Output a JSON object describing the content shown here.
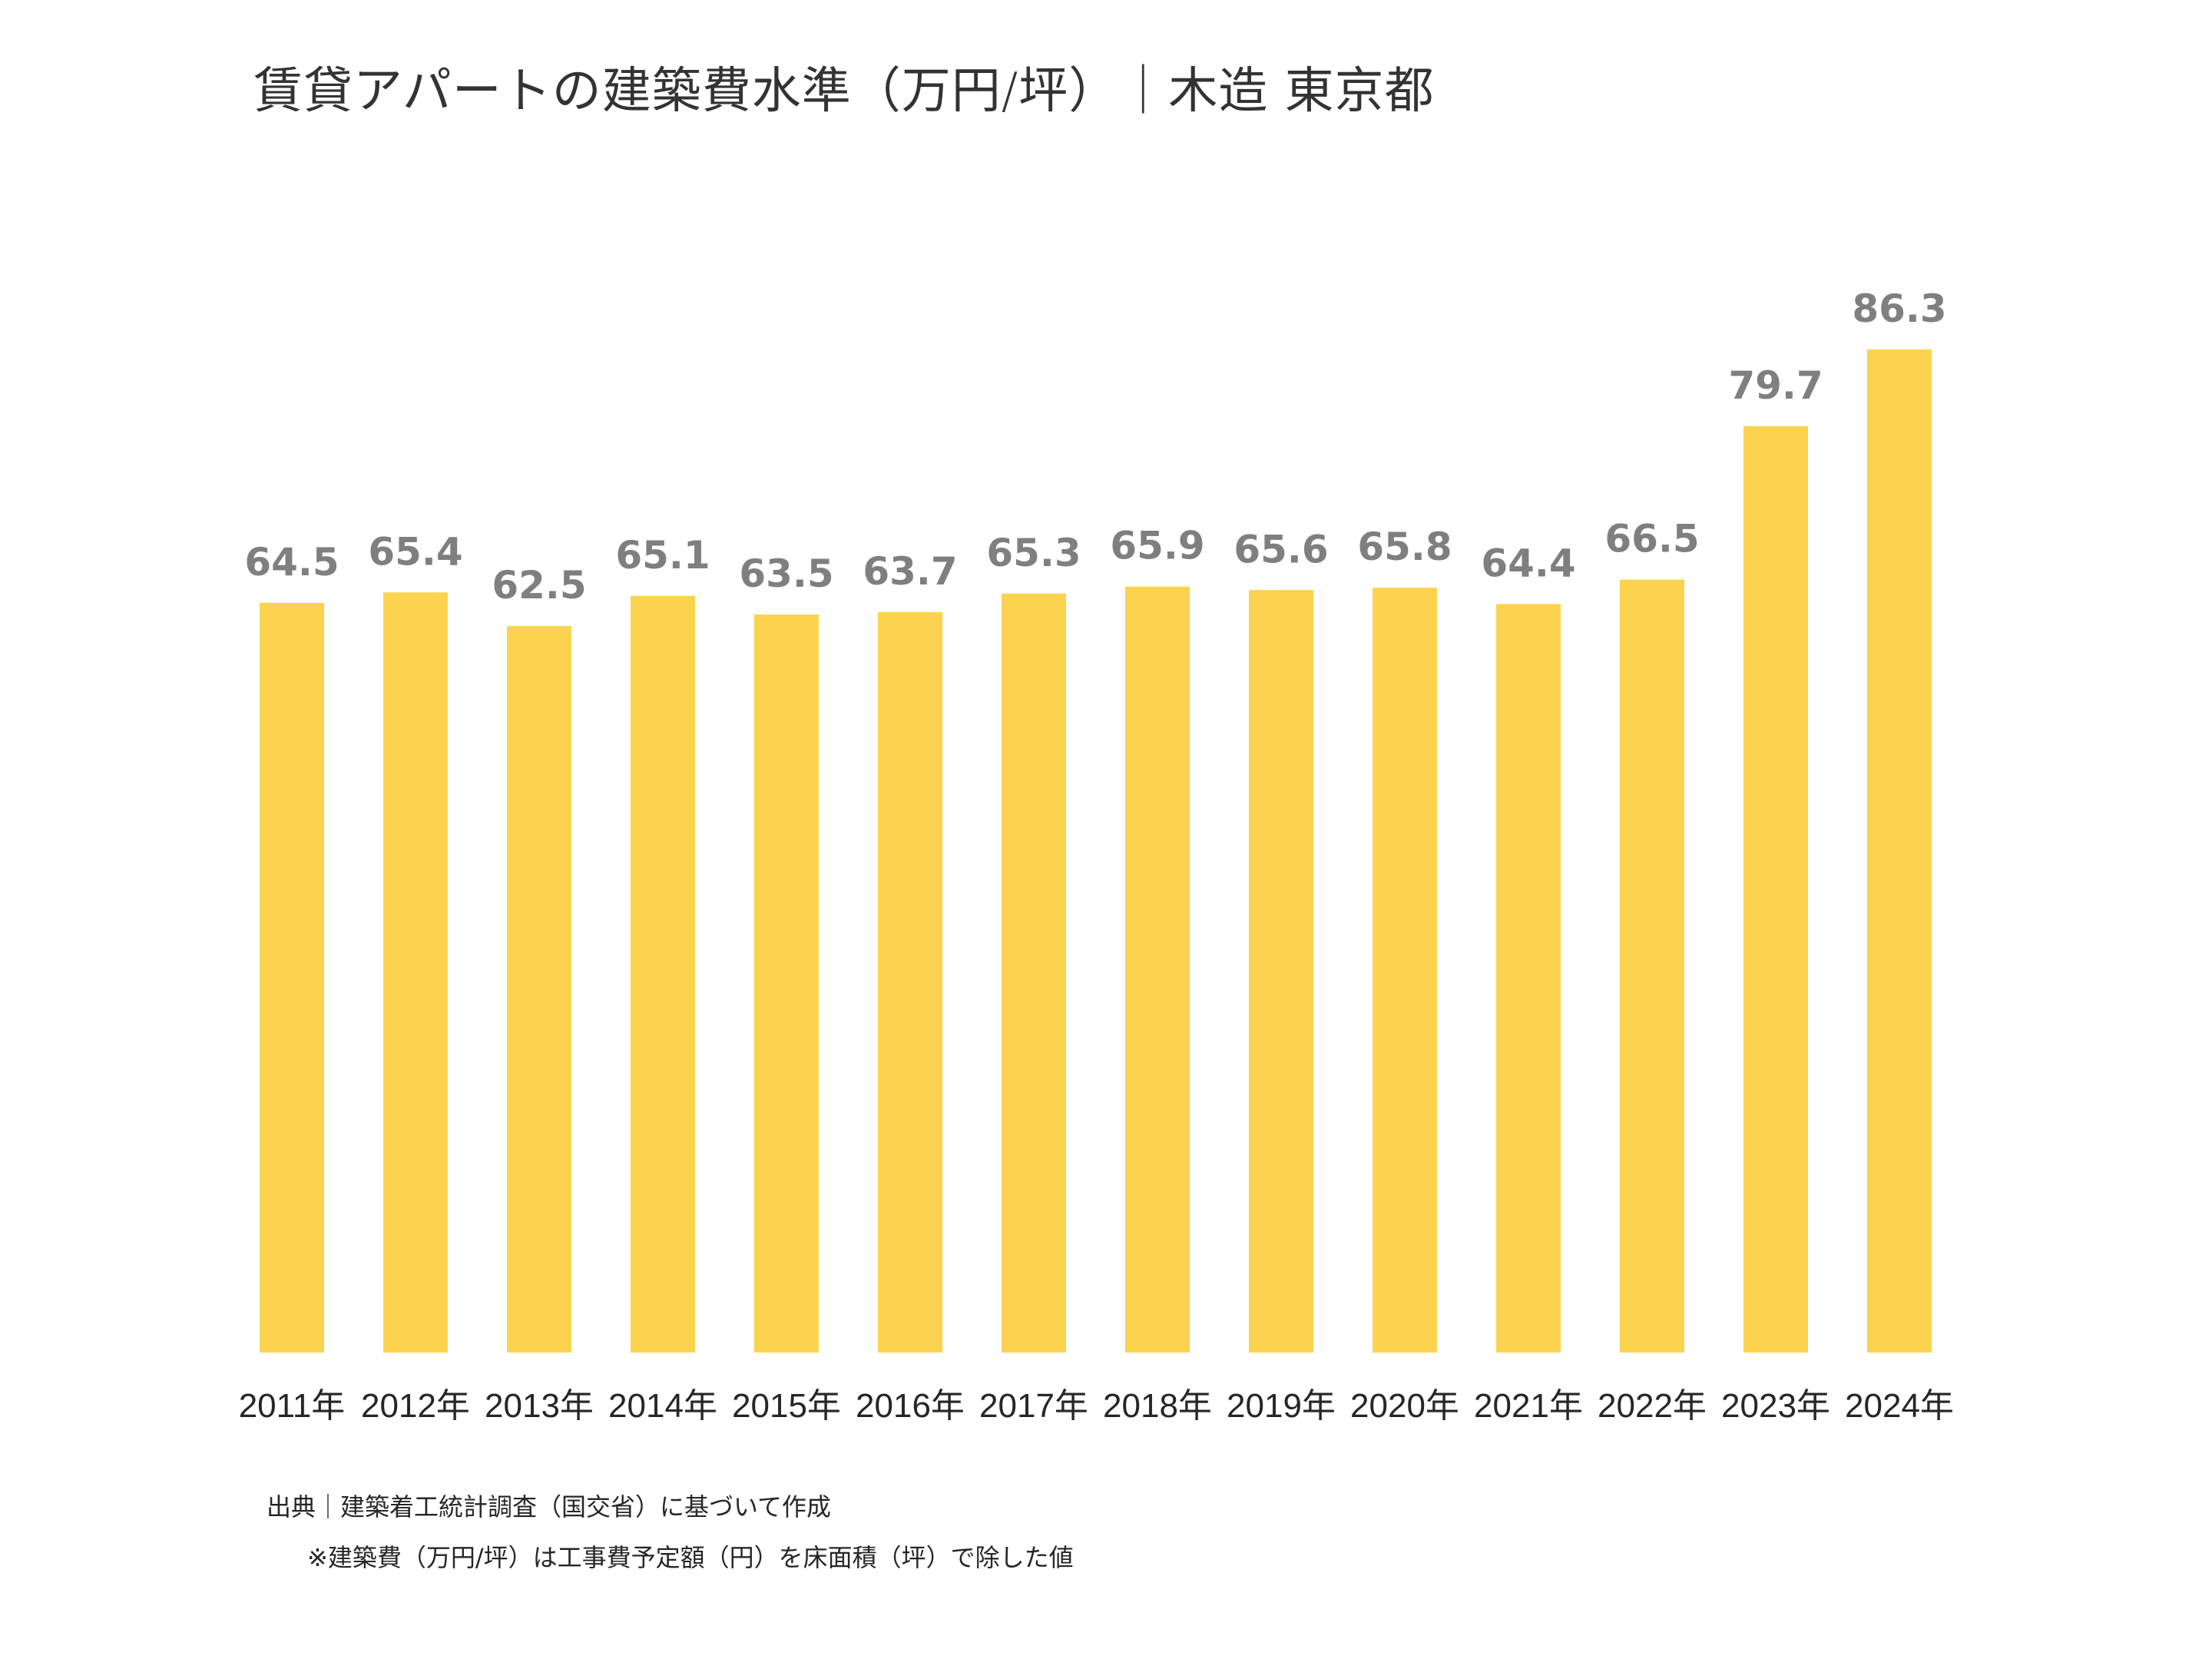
{
  "chart_data": {
    "type": "bar",
    "title": "賃貸アパートの建築費水準（万円/坪）｜木造 東京都",
    "xlabel": "",
    "ylabel": "",
    "ylim": [
      0,
      86.3
    ],
    "grid": false,
    "legend": "none",
    "categories": [
      "2011年",
      "2012年",
      "2013年",
      "2014年",
      "2015年",
      "2016年",
      "2017年",
      "2018年",
      "2019年",
      "2020年",
      "2021年",
      "2022年",
      "2023年",
      "2024年"
    ],
    "values": [
      64.5,
      65.4,
      62.5,
      65.1,
      63.5,
      63.7,
      65.3,
      65.9,
      65.6,
      65.8,
      64.4,
      66.5,
      79.7,
      86.3
    ],
    "value_labels": [
      "64.5",
      "65.4",
      "62.5",
      "65.1",
      "63.5",
      "63.7",
      "65.3",
      "65.9",
      "65.6",
      "65.8",
      "64.4",
      "66.5",
      "79.7",
      "86.3"
    ],
    "bar_color": "#fcd34f",
    "label_color": "#7f7f7f",
    "unit": "万円/坪"
  },
  "footnotes": {
    "source": "出典｜建築着工統計調査（国交省）に基づいて作成",
    "note": "※建築費（万円/坪）は工事費予定額（円）を床面積（坪）で除した値"
  }
}
